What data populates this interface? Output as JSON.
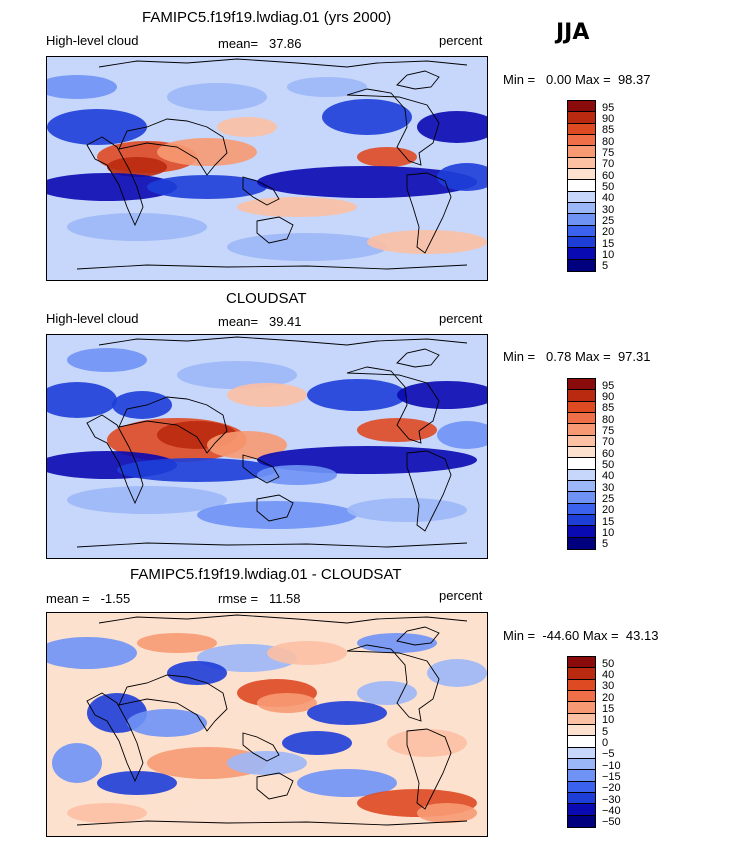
{
  "season": "JJA",
  "units": "percent",
  "colors": {
    "abs_palette": [
      "#00007f",
      "#0a0ab3",
      "#1e3ed8",
      "#3a62ee",
      "#6f93f5",
      "#9cb7f7",
      "#c6d7fb",
      "#ffffff",
      "#fde1cf",
      "#fcc0a3",
      "#f79a73",
      "#ef6f48",
      "#de4a22",
      "#b92a10",
      "#8a0b0b"
    ],
    "diff_palette": [
      "#00007f",
      "#0a0ab3",
      "#1e3ed8",
      "#3a62ee",
      "#6f93f5",
      "#9cb7f7",
      "#c6d7fb",
      "#ffffff",
      "#fde1cf",
      "#fcc0a3",
      "#f79a73",
      "#ef6f48",
      "#de4a22",
      "#b92a10",
      "#8a0b0b"
    ]
  },
  "chart_data": [
    {
      "type": "heatmap",
      "title": "FAMIPC5.f19f19.lwdiag.01 (yrs 2000)",
      "variable": "High-level cloud",
      "mean_label": "mean=",
      "mean": "37.86",
      "units": "percent",
      "min_label": "Min =",
      "min": "0.00",
      "max_label": "Max =",
      "max": "98.37",
      "levels": [
        "95",
        "90",
        "85",
        "80",
        "75",
        "70",
        "60",
        "50",
        "40",
        "30",
        "25",
        "20",
        "15",
        "10",
        "5"
      ]
    },
    {
      "type": "heatmap",
      "title": "CLOUDSAT",
      "variable": "High-level cloud",
      "mean_label": "mean=",
      "mean": "39.41",
      "units": "percent",
      "min_label": "Min =",
      "min": "0.78",
      "max_label": "Max =",
      "max": "97.31",
      "levels": [
        "95",
        "90",
        "85",
        "80",
        "75",
        "70",
        "60",
        "50",
        "40",
        "30",
        "25",
        "20",
        "15",
        "10",
        "5"
      ]
    },
    {
      "type": "heatmap",
      "title": "FAMIPC5.f19f19.lwdiag.01 - CLOUDSAT",
      "mean_label": "mean =",
      "mean": "-1.55",
      "rmse_label": "rmse =",
      "rmse": "11.58",
      "units": "percent",
      "min_label": "Min =",
      "min": "-44.60",
      "max_label": "Max =",
      "max": "43.13",
      "levels": [
        "50",
        "40",
        "30",
        "20",
        "15",
        "10",
        "5",
        "0",
        "−5",
        "−10",
        "−15",
        "−20",
        "−30",
        "−40",
        "−50"
      ]
    }
  ]
}
